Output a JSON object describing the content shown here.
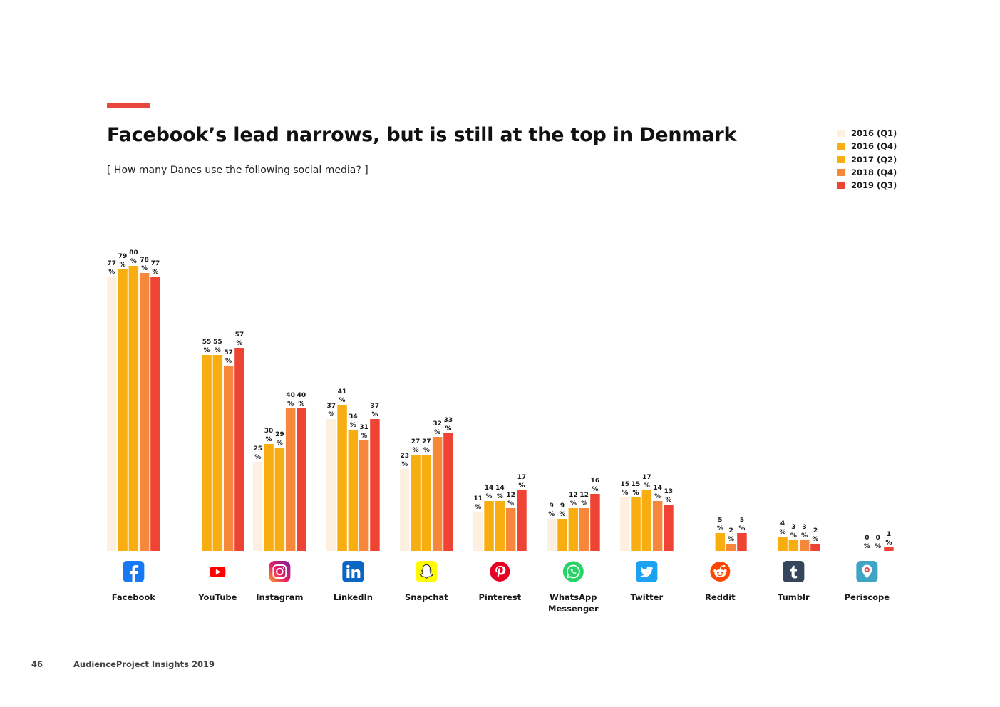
{
  "header": {
    "title": "Facebook’s lead narrows, but is still at the top in Denmark",
    "subtitle": "[ How many Danes use the following social media? ]"
  },
  "footer": {
    "page_number": "46",
    "publication": "AudienceProject Insights 2019"
  },
  "chart_data": {
    "type": "bar",
    "title": "Facebook’s lead narrows, but is still at the top in Denmark",
    "subtitle": "[ How many Danes use the following social media? ]",
    "xlabel": "",
    "ylabel": "",
    "ylim": [
      0,
      100
    ],
    "grid": false,
    "legend_position": "top-right",
    "value_suffix": "%",
    "categories": [
      {
        "label": "Facebook",
        "icon": "facebook-icon"
      },
      {
        "label": "YouTube",
        "icon": "youtube-icon"
      },
      {
        "label": "Instagram",
        "icon": "instagram-icon"
      },
      {
        "label": "LinkedIn",
        "icon": "linkedin-icon"
      },
      {
        "label": "Snapchat",
        "icon": "snapchat-icon"
      },
      {
        "label": "Pinterest",
        "icon": "pinterest-icon"
      },
      {
        "label": "WhatsApp Messenger",
        "icon": "whatsapp-icon"
      },
      {
        "label": "Twitter",
        "icon": "twitter-icon"
      },
      {
        "label": "Reddit",
        "icon": "reddit-icon"
      },
      {
        "label": "Tumblr",
        "icon": "tumblr-icon"
      },
      {
        "label": "Periscope",
        "icon": "periscope-icon"
      }
    ],
    "series": [
      {
        "name": "2016 (Q1)",
        "color": "#fdf0e1",
        "values": [
          77,
          null,
          25,
          37,
          23,
          11,
          9,
          15,
          null,
          null,
          null
        ]
      },
      {
        "name": "2016 (Q4)",
        "color": "#f8ae10",
        "values": [
          79,
          55,
          30,
          41,
          27,
          14,
          9,
          15,
          null,
          4,
          null
        ]
      },
      {
        "name": "2017 (Q2)",
        "color": "#f8ae10",
        "values": [
          80,
          55,
          29,
          34,
          27,
          14,
          12,
          17,
          5,
          3,
          0
        ]
      },
      {
        "name": "2018 (Q4)",
        "color": "#f7873a",
        "values": [
          78,
          52,
          40,
          31,
          32,
          12,
          12,
          14,
          2,
          3,
          0
        ]
      },
      {
        "name": "2019 (Q3)",
        "color": "#ef4333",
        "values": [
          77,
          57,
          40,
          37,
          33,
          17,
          16,
          13,
          5,
          2,
          1
        ]
      }
    ]
  }
}
